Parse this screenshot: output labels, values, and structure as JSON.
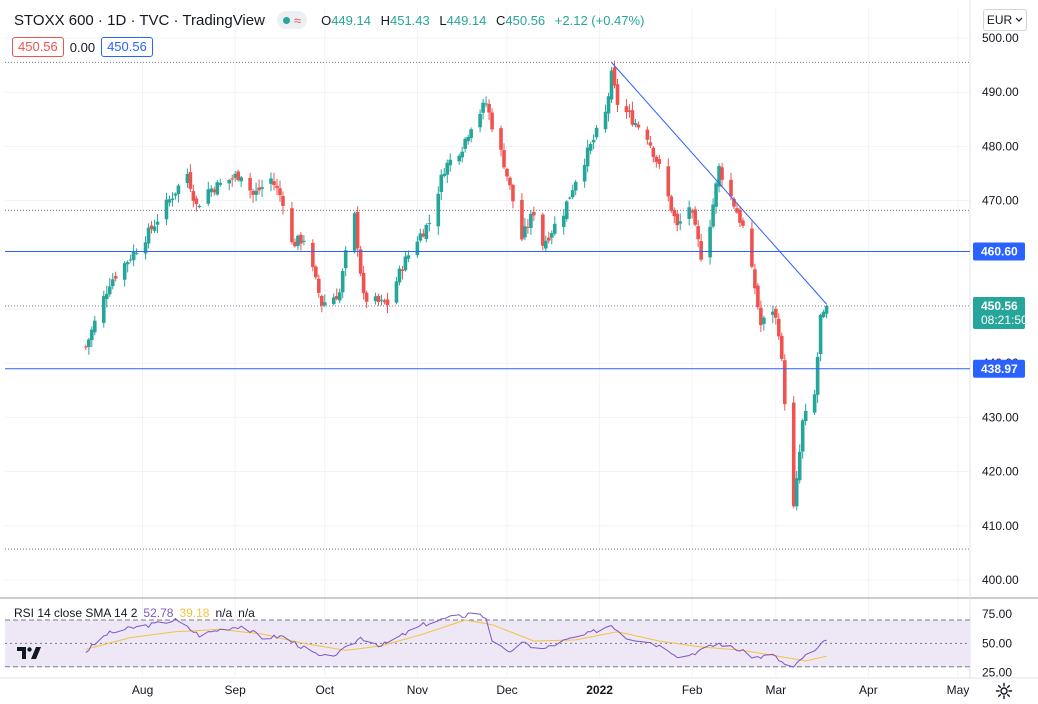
{
  "header": {
    "symbol": "STOXX 600 · 1D · TVC · TradingView",
    "ohlc": {
      "open_label": "O",
      "open": "449.14",
      "high_label": "H",
      "high": "451.43",
      "low_label": "L",
      "low": "449.14",
      "close_label": "C",
      "close": "450.56",
      "change": "+2.12 (+0.47%)"
    },
    "status_icon": "market-open-icon",
    "bid": "450.56",
    "spread": "0.00",
    "ask": "450.56"
  },
  "currency_button": {
    "label": "EUR",
    "icon": "chevron-down-icon"
  },
  "colors": {
    "up": "#26a69a",
    "down": "#ef5350",
    "hline": "#2962ff",
    "rsi": "#7e57c2",
    "rsi_sma": "#f5c242",
    "rsi_band": "#ede7f6"
  },
  "price_axis_labels": [
    "500.00",
    "490.00",
    "480.00",
    "470.00",
    "460.00",
    "450.00",
    "440.00",
    "430.00",
    "420.00",
    "410.00",
    "400.00"
  ],
  "price_tags": {
    "level_upper": "460.60",
    "last_price": "450.56",
    "countdown": "08:21:50",
    "level_lower": "438.97"
  },
  "rsi": {
    "label": "RSI 14 close SMA 14 2",
    "rsi_value": "52.78",
    "sma_value": "39.18",
    "na1": "n/a",
    "na2": "n/a",
    "axis_labels": [
      "75.00",
      "50.00",
      "25.00"
    ]
  },
  "time_axis_labels": [
    "Aug",
    "Sep",
    "Oct",
    "Nov",
    "Dec",
    "2022",
    "Feb",
    "Mar",
    "Apr",
    "May"
  ],
  "chart_data": {
    "type": "candlestick",
    "title": "STOXX 600 · 1D · TVC · TradingView",
    "ylim": [
      400,
      500
    ],
    "horizontal_levels": [
      460.6,
      438.97
    ],
    "dotted_levels": [
      495.5,
      468.2,
      450.56,
      405.7
    ],
    "trendline": {
      "from": {
        "date": "2022-01-05",
        "value": 495.5
      },
      "to": {
        "date": "2022-03-18",
        "value": 450.9
      }
    },
    "date_range": [
      "2021-07-13",
      "2022-03-18"
    ],
    "anchors": [
      {
        "date": "2021-07-13",
        "value": 443
      },
      {
        "date": "2021-07-19",
        "value": 452
      },
      {
        "date": "2021-07-21",
        "value": 455
      },
      {
        "date": "2021-07-27",
        "value": 459
      },
      {
        "date": "2021-08-03",
        "value": 464
      },
      {
        "date": "2021-08-11",
        "value": 471
      },
      {
        "date": "2021-08-16",
        "value": 475
      },
      {
        "date": "2021-08-19",
        "value": 469
      },
      {
        "date": "2021-08-23",
        "value": 472
      },
      {
        "date": "2021-08-27",
        "value": 473
      },
      {
        "date": "2021-09-03",
        "value": 475
      },
      {
        "date": "2021-09-07",
        "value": 471
      },
      {
        "date": "2021-09-13",
        "value": 474
      },
      {
        "date": "2021-09-17",
        "value": 470
      },
      {
        "date": "2021-09-20",
        "value": 462
      },
      {
        "date": "2021-09-24",
        "value": 463
      },
      {
        "date": "2021-09-30",
        "value": 451
      },
      {
        "date": "2021-10-06",
        "value": 453
      },
      {
        "date": "2021-10-08",
        "value": 460
      },
      {
        "date": "2021-10-11",
        "value": 467
      },
      {
        "date": "2021-10-14",
        "value": 452
      },
      {
        "date": "2021-10-20",
        "value": 451
      },
      {
        "date": "2021-10-22",
        "value": 451
      },
      {
        "date": "2021-10-27",
        "value": 458
      },
      {
        "date": "2021-11-01",
        "value": 463
      },
      {
        "date": "2021-11-05",
        "value": 466
      },
      {
        "date": "2021-11-10",
        "value": 476
      },
      {
        "date": "2021-11-16",
        "value": 480
      },
      {
        "date": "2021-11-19",
        "value": 484
      },
      {
        "date": "2021-11-24",
        "value": 488
      },
      {
        "date": "2021-11-26",
        "value": 484
      },
      {
        "date": "2021-11-30",
        "value": 477
      },
      {
        "date": "2021-12-03",
        "value": 470
      },
      {
        "date": "2021-12-06",
        "value": 463
      },
      {
        "date": "2021-12-10",
        "value": 468
      },
      {
        "date": "2021-12-13",
        "value": 462
      },
      {
        "date": "2021-12-20",
        "value": 468
      },
      {
        "date": "2021-12-24",
        "value": 474
      },
      {
        "date": "2022-01-03",
        "value": 486
      },
      {
        "date": "2022-01-05",
        "value": 493
      },
      {
        "date": "2022-01-07",
        "value": 488
      },
      {
        "date": "2022-01-12",
        "value": 485
      },
      {
        "date": "2022-01-17",
        "value": 482
      },
      {
        "date": "2022-01-21",
        "value": 476
      },
      {
        "date": "2022-01-27",
        "value": 465
      },
      {
        "date": "2022-01-31",
        "value": 469
      },
      {
        "date": "2022-02-04",
        "value": 460
      },
      {
        "date": "2022-02-07",
        "value": 466
      },
      {
        "date": "2022-02-10",
        "value": 476
      },
      {
        "date": "2022-02-16",
        "value": 468
      },
      {
        "date": "2022-02-18",
        "value": 465
      },
      {
        "date": "2022-02-22",
        "value": 454
      },
      {
        "date": "2022-02-24",
        "value": 447
      },
      {
        "date": "2022-02-28",
        "value": 450
      },
      {
        "date": "2022-03-02",
        "value": 446
      },
      {
        "date": "2022-03-03",
        "value": 440
      },
      {
        "date": "2022-03-07",
        "value": 413
      },
      {
        "date": "2022-03-08",
        "value": 418
      },
      {
        "date": "2022-03-10",
        "value": 429
      },
      {
        "date": "2022-03-14",
        "value": 434
      },
      {
        "date": "2022-03-16",
        "value": 448.4
      },
      {
        "date": "2022-03-17",
        "value": 448.44
      },
      {
        "date": "2022-03-18",
        "value": 450.56
      }
    ],
    "rsi_series": {
      "name": "RSI 14 close SMA 14 2",
      "ylim": [
        20,
        80
      ],
      "bands": [
        30,
        50,
        70
      ],
      "rsi_anchors": [
        {
          "date": "2021-07-13",
          "value": 43
        },
        {
          "date": "2021-07-20",
          "value": 58
        },
        {
          "date": "2021-07-28",
          "value": 63
        },
        {
          "date": "2021-08-04",
          "value": 66
        },
        {
          "date": "2021-08-12",
          "value": 70
        },
        {
          "date": "2021-08-20",
          "value": 57
        },
        {
          "date": "2021-08-27",
          "value": 62
        },
        {
          "date": "2021-09-03",
          "value": 65
        },
        {
          "date": "2021-09-10",
          "value": 55
        },
        {
          "date": "2021-09-17",
          "value": 56
        },
        {
          "date": "2021-09-24",
          "value": 46
        },
        {
          "date": "2021-09-30",
          "value": 38
        },
        {
          "date": "2021-10-06",
          "value": 42
        },
        {
          "date": "2021-10-13",
          "value": 55
        },
        {
          "date": "2021-10-20",
          "value": 48
        },
        {
          "date": "2021-10-27",
          "value": 57
        },
        {
          "date": "2021-11-03",
          "value": 66
        },
        {
          "date": "2021-11-10",
          "value": 71
        },
        {
          "date": "2021-11-17",
          "value": 74
        },
        {
          "date": "2021-11-19",
          "value": 77
        },
        {
          "date": "2021-11-24",
          "value": 72
        },
        {
          "date": "2021-11-26",
          "value": 53
        },
        {
          "date": "2021-12-01",
          "value": 42
        },
        {
          "date": "2021-12-06",
          "value": 50
        },
        {
          "date": "2021-12-13",
          "value": 45
        },
        {
          "date": "2021-12-20",
          "value": 52
        },
        {
          "date": "2021-12-28",
          "value": 58
        },
        {
          "date": "2022-01-05",
          "value": 66
        },
        {
          "date": "2022-01-10",
          "value": 55
        },
        {
          "date": "2022-01-17",
          "value": 52
        },
        {
          "date": "2022-01-24",
          "value": 45
        },
        {
          "date": "2022-01-28",
          "value": 38
        },
        {
          "date": "2022-02-04",
          "value": 44
        },
        {
          "date": "2022-02-10",
          "value": 50
        },
        {
          "date": "2022-02-16",
          "value": 45
        },
        {
          "date": "2022-02-22",
          "value": 38
        },
        {
          "date": "2022-02-28",
          "value": 40
        },
        {
          "date": "2022-03-04",
          "value": 32
        },
        {
          "date": "2022-03-07",
          "value": 29
        },
        {
          "date": "2022-03-10",
          "value": 38
        },
        {
          "date": "2022-03-14",
          "value": 43
        },
        {
          "date": "2022-03-18",
          "value": 52.78
        }
      ],
      "sma_anchors": [
        {
          "date": "2021-07-13",
          "value": 45
        },
        {
          "date": "2021-07-28",
          "value": 55
        },
        {
          "date": "2021-08-12",
          "value": 60
        },
        {
          "date": "2021-08-27",
          "value": 62
        },
        {
          "date": "2021-09-10",
          "value": 58
        },
        {
          "date": "2021-09-24",
          "value": 50
        },
        {
          "date": "2021-10-08",
          "value": 44
        },
        {
          "date": "2021-10-20",
          "value": 48
        },
        {
          "date": "2021-11-03",
          "value": 58
        },
        {
          "date": "2021-11-17",
          "value": 70
        },
        {
          "date": "2021-11-26",
          "value": 66
        },
        {
          "date": "2021-12-10",
          "value": 52
        },
        {
          "date": "2021-12-24",
          "value": 53
        },
        {
          "date": "2022-01-07",
          "value": 60
        },
        {
          "date": "2022-01-21",
          "value": 52
        },
        {
          "date": "2022-02-04",
          "value": 47
        },
        {
          "date": "2022-02-18",
          "value": 44
        },
        {
          "date": "2022-03-04",
          "value": 38
        },
        {
          "date": "2022-03-11",
          "value": 35
        },
        {
          "date": "2022-03-18",
          "value": 39.18
        }
      ]
    }
  }
}
